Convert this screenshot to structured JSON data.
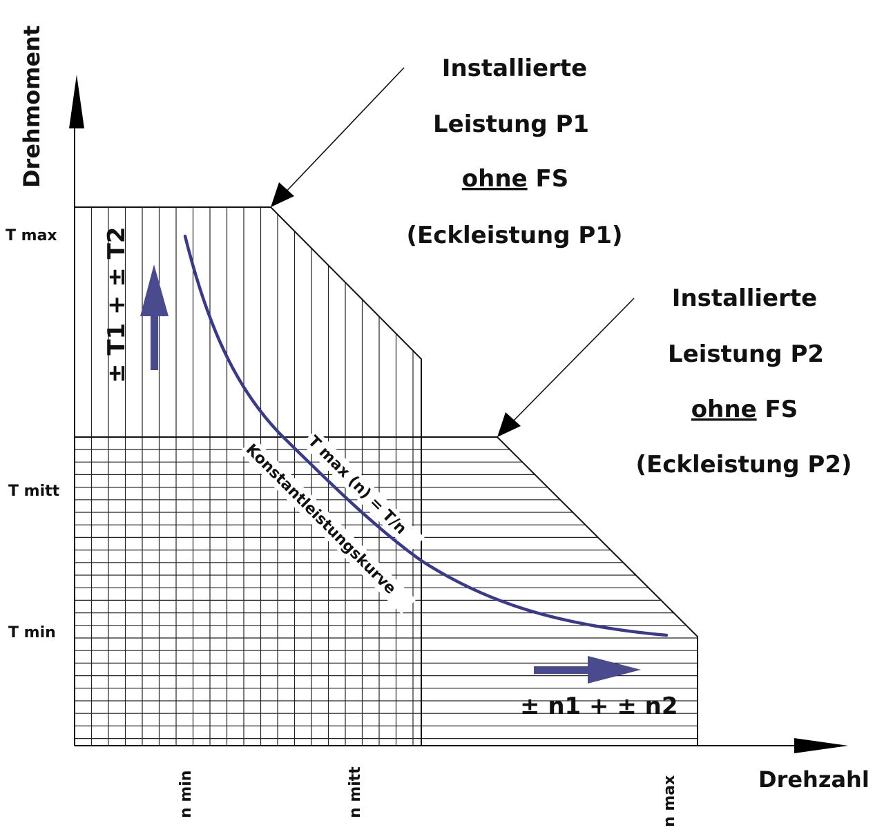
{
  "axes": {
    "y_title": "Drehmoment",
    "x_title": "Drehzahl",
    "y_ticks": [
      "T max",
      "T mitt",
      "T min"
    ],
    "x_ticks": [
      "n min",
      "n mitt",
      "n max"
    ]
  },
  "annotation_p1": {
    "line1": "Installierte",
    "line2": "Leistung P1",
    "line3_underlined": "ohne",
    "line3_rest": " FS",
    "line4": "(Eckleistung P1)"
  },
  "annotation_p2": {
    "line1": "Installierte",
    "line2": "Leistung P2",
    "line3_underlined": "ohne",
    "line3_rest": " FS",
    "line4": "(Eckleistung P2)"
  },
  "torque_arrow_label": "± T1 + ± T2",
  "speed_arrow_label": "± n1 + ± n2",
  "curve": {
    "formula_label": "T max (n) = T/n",
    "name_label": "Konstantleistungskurve"
  },
  "colors": {
    "curve": "#3a3a8c",
    "arrow": "#4a4a8e",
    "ink": "#111111"
  }
}
